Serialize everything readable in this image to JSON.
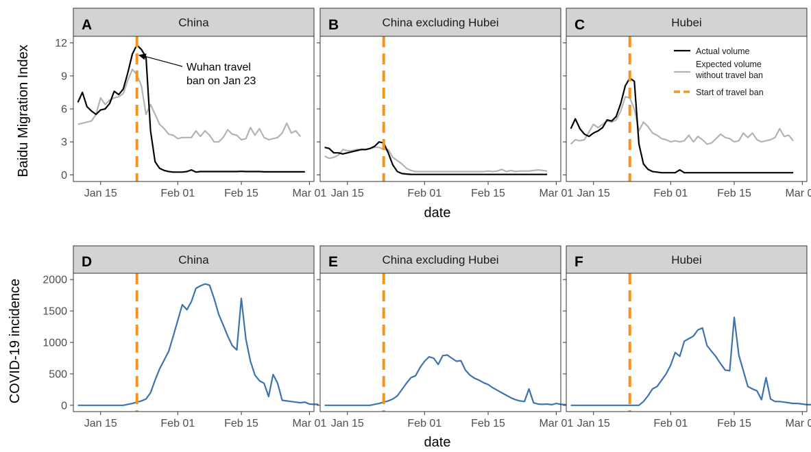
{
  "panel_tags": [
    "A",
    "B",
    "C",
    "D",
    "E",
    "F"
  ],
  "strips": [
    "China",
    "China excluding Hubei",
    "Hubei"
  ],
  "colors": {
    "actual": "#000000",
    "expected": "#b3b3b3",
    "ban": "#f7941d",
    "incidence": "#3d72b0",
    "strip_bg": "#d3d3d3"
  },
  "chart_data": [
    {
      "type": "line",
      "ylabel": "Baidu Migration Index",
      "xlabel": "date",
      "x_ticks": [
        "Jan 15",
        "Feb 01",
        "Feb 15",
        "Mar 01"
      ],
      "x_range": [
        "2020-01-09",
        "2020-03-02"
      ],
      "y_ticks": [
        "0",
        "3",
        "6",
        "9",
        "12"
      ],
      "ylim": [
        -0.6,
        12.6
      ],
      "legend": {
        "placement": "top-right",
        "entries": [
          "Actual volume",
          "Expected volume without travel ban",
          "Start of travel ban"
        ]
      },
      "annotation": "Wuhan travel ban on Jan 23",
      "travel_ban_date": "2020-01-23",
      "panels": [
        {
          "tag": "A",
          "title": "China",
          "series": [
            {
              "name": "Actual volume",
              "start": "2020-01-10",
              "values": [
                6.6,
                7.5,
                6.2,
                5.8,
                5.5,
                5.9,
                6.0,
                6.5,
                7.6,
                7.3,
                7.8,
                9.3,
                11.0,
                11.8,
                11.4,
                10.7,
                4.0,
                1.2,
                0.6,
                0.4,
                0.3,
                0.25,
                0.25,
                0.25,
                0.3,
                0.45,
                0.25,
                0.3,
                0.3,
                0.3,
                0.3,
                0.3,
                0.3,
                0.3,
                0.3,
                0.3,
                0.32,
                0.3,
                0.3,
                0.3,
                0.3,
                0.28,
                0.28,
                0.28,
                0.28,
                0.28,
                0.28,
                0.28,
                0.28,
                0.28,
                0.28
              ]
            },
            {
              "name": "Expected volume without travel ban",
              "start": "2020-01-10",
              "values": [
                4.6,
                4.7,
                4.8,
                4.9,
                5.5,
                7.0,
                6.4,
                6.8,
                7.0,
                7.1,
                7.4,
                8.6,
                9.6,
                9.1,
                8.1,
                5.5,
                6.4,
                5.5,
                4.6,
                4.2,
                3.7,
                3.6,
                3.3,
                3.4,
                3.4,
                3.4,
                4.0,
                3.5,
                4.0,
                3.6,
                3.0,
                3.0,
                3.4,
                4.1,
                3.7,
                3.6,
                3.2,
                3.3,
                4.3,
                3.6,
                4.2,
                3.4,
                3.2,
                3.3,
                3.4,
                3.8,
                4.7,
                3.8,
                4.0,
                3.5
              ]
            }
          ]
        },
        {
          "tag": "B",
          "title": "China excluding Hubei",
          "series": [
            {
              "name": "Actual volume",
              "start": "2020-01-10",
              "values": [
                2.5,
                2.4,
                2.0,
                2.0,
                1.9,
                2.0,
                2.1,
                2.2,
                2.3,
                2.3,
                2.4,
                2.6,
                3.0,
                2.9,
                2.0,
                0.9,
                0.3,
                0.12,
                0.08,
                0.05,
                0.04,
                0.04,
                0.04,
                0.04,
                0.04,
                0.04,
                0.04,
                0.04,
                0.04,
                0.04,
                0.04,
                0.04,
                0.04,
                0.04,
                0.04,
                0.04,
                0.04,
                0.04,
                0.04,
                0.04,
                0.04,
                0.04,
                0.04,
                0.04,
                0.04,
                0.04,
                0.04,
                0.04,
                0.04,
                0.04
              ]
            },
            {
              "name": "Expected volume without travel ban",
              "start": "2020-01-10",
              "values": [
                1.7,
                1.5,
                1.6,
                1.8,
                2.3,
                2.2,
                2.2,
                2.3,
                2.3,
                2.3,
                2.4,
                2.5,
                2.5,
                2.3,
                2.3,
                1.6,
                1.3,
                1.0,
                0.6,
                0.4,
                0.3,
                0.3,
                0.3,
                0.3,
                0.3,
                0.3,
                0.3,
                0.3,
                0.3,
                0.3,
                0.3,
                0.3,
                0.3,
                0.3,
                0.3,
                0.3,
                0.35,
                0.3,
                0.35,
                0.5,
                0.3,
                0.4,
                0.3,
                0.35,
                0.35,
                0.35,
                0.4,
                0.45,
                0.4,
                0.35
              ]
            }
          ]
        },
        {
          "tag": "C",
          "title": "Hubei",
          "series": [
            {
              "name": "Actual volume",
              "start": "2020-01-10",
              "values": [
                4.2,
                5.1,
                4.2,
                3.7,
                3.5,
                3.8,
                4.0,
                4.3,
                5.0,
                4.9,
                5.3,
                6.5,
                8.1,
                8.8,
                8.5,
                2.8,
                1.0,
                0.5,
                0.3,
                0.25,
                0.2,
                0.2,
                0.2,
                0.2,
                0.45,
                0.2,
                0.2,
                0.2,
                0.2,
                0.2,
                0.2,
                0.2,
                0.2,
                0.2,
                0.2,
                0.2,
                0.2,
                0.2,
                0.2,
                0.2,
                0.2,
                0.2,
                0.2,
                0.2,
                0.2,
                0.2,
                0.2,
                0.2,
                0.2,
                0.2
              ]
            },
            {
              "name": "Expected volume without travel ban",
              "start": "2020-01-10",
              "values": [
                2.8,
                3.2,
                3.1,
                3.2,
                3.9,
                4.6,
                4.3,
                4.6,
                4.9,
                4.8,
                5.0,
                5.8,
                7.1,
                7.0,
                6.0,
                4.0,
                4.8,
                4.4,
                3.8,
                3.6,
                3.3,
                3.2,
                3.0,
                3.1,
                3.0,
                3.1,
                3.6,
                3.0,
                3.5,
                3.2,
                2.8,
                2.9,
                3.3,
                3.7,
                3.4,
                3.3,
                3.0,
                3.1,
                3.8,
                3.4,
                3.8,
                3.2,
                3.0,
                3.1,
                3.2,
                3.4,
                4.2,
                3.5,
                3.6,
                3.1
              ]
            }
          ]
        }
      ]
    },
    {
      "type": "line",
      "ylabel": "COVID-19 incidence",
      "xlabel": "date",
      "x_ticks": [
        "Jan 15",
        "Feb 01",
        "Feb 15",
        "Mar 01"
      ],
      "x_range": [
        "2020-01-09",
        "2020-03-02"
      ],
      "y_ticks": [
        "0",
        "500",
        "1000",
        "1500",
        "2000"
      ],
      "ylim": [
        -100,
        2100
      ],
      "travel_ban_date": "2020-01-23",
      "panels": [
        {
          "tag": "D",
          "title": "China",
          "series": [
            {
              "start": "2020-01-10",
              "values": [
                0,
                0,
                0,
                0,
                0,
                0,
                0,
                0,
                0,
                0,
                0,
                15,
                30,
                50,
                70,
                100,
                200,
                400,
                580,
                720,
                860,
                1100,
                1350,
                1600,
                1520,
                1650,
                1860,
                1900,
                1930,
                1910,
                1700,
                1450,
                1280,
                1100,
                950,
                880,
                1700,
                1050,
                700,
                480,
                390,
                350,
                140,
                490,
                350,
                80,
                70,
                60,
                50,
                40,
                50,
                20,
                15,
                15
              ]
            }
          ]
        },
        {
          "tag": "E",
          "title": "China excluding Hubei",
          "series": [
            {
              "start": "2020-01-10",
              "values": [
                0,
                0,
                0,
                0,
                0,
                0,
                0,
                0,
                0,
                0,
                0,
                15,
                30,
                50,
                70,
                100,
                150,
                250,
                350,
                440,
                470,
                600,
                700,
                770,
                750,
                650,
                790,
                800,
                750,
                700,
                710,
                560,
                480,
                430,
                400,
                360,
                330,
                280,
                240,
                200,
                160,
                120,
                90,
                70,
                60,
                260,
                40,
                20,
                15,
                20,
                10,
                30,
                15,
                10,
                10
              ]
            }
          ]
        },
        {
          "tag": "F",
          "title": "Hubei",
          "series": [
            {
              "start": "2020-01-10",
              "values": [
                0,
                0,
                0,
                0,
                0,
                0,
                0,
                0,
                0,
                0,
                0,
                0,
                0,
                0,
                0,
                0,
                60,
                150,
                260,
                300,
                400,
                500,
                640,
                840,
                780,
                1020,
                1060,
                1100,
                1200,
                1230,
                950,
                860,
                770,
                660,
                560,
                550,
                1400,
                800,
                550,
                300,
                260,
                230,
                90,
                440,
                100,
                60,
                60,
                50,
                40,
                30,
                30,
                20,
                10,
                10
              ]
            }
          ]
        }
      ]
    }
  ]
}
